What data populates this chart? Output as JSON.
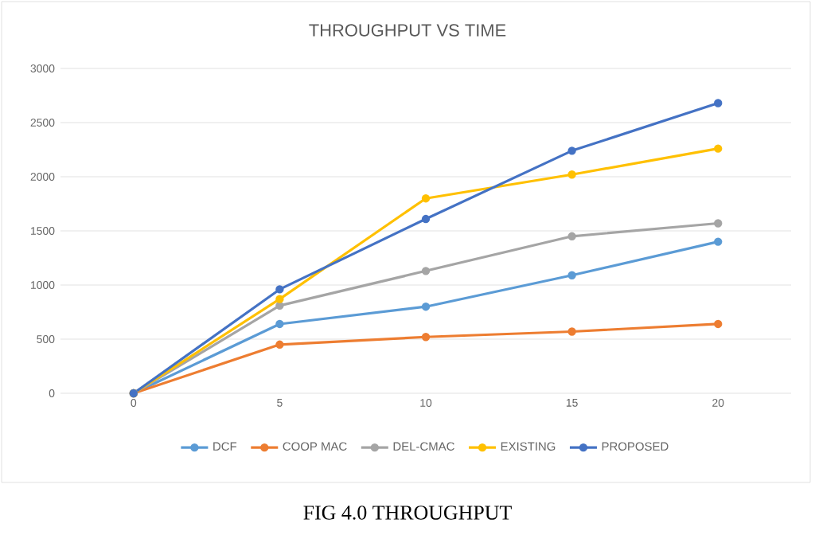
{
  "chart_data": {
    "type": "line",
    "title": "THROUGHPUT VS TIME",
    "categories": [
      "0",
      "5",
      "10",
      "15",
      "20"
    ],
    "series": [
      {
        "name": "DCF",
        "color": "#5b9bd5",
        "values": [
          0,
          640,
          800,
          1090,
          1400
        ]
      },
      {
        "name": "COOP MAC",
        "color": "#ed7d31",
        "values": [
          0,
          450,
          520,
          570,
          640
        ]
      },
      {
        "name": "DEL-CMAC",
        "color": "#a5a5a5",
        "values": [
          0,
          810,
          1130,
          1450,
          1570
        ]
      },
      {
        "name": "EXISTING",
        "color": "#ffc000",
        "values": [
          0,
          870,
          1800,
          2020,
          2260
        ]
      },
      {
        "name": "PROPOSED",
        "color": "#4472c4",
        "values": [
          0,
          960,
          1610,
          2240,
          2680
        ]
      }
    ],
    "ylim": [
      0,
      3000
    ],
    "yticks": [
      0,
      500,
      1000,
      1500,
      2000,
      2500,
      3000
    ],
    "grid": "y",
    "legend": "bottom",
    "marker": "circle",
    "line_style": "solid",
    "annotations": [
      "FIG 4.0  THROUGHPUT"
    ]
  }
}
